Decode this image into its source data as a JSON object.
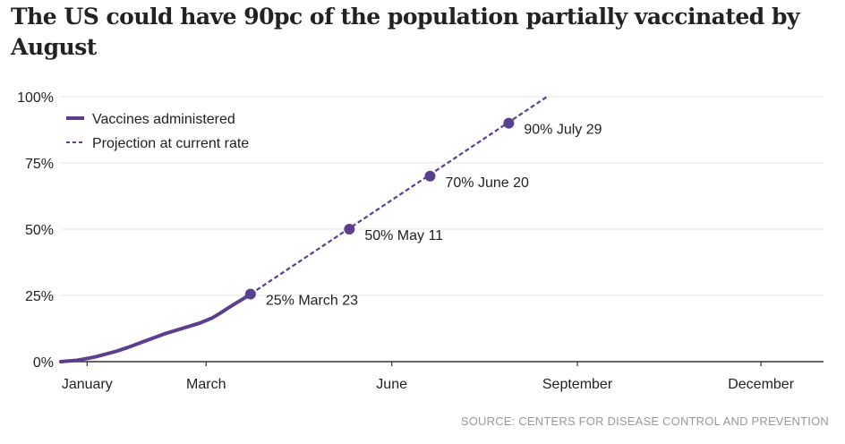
{
  "chart_data": {
    "type": "line",
    "title": "The US could have 90pc of the population partially vaccinated by August",
    "source": "SOURCE: CENTERS FOR DISEASE CONTROL AND PREVENTION",
    "x_unit": "day of 2021 (0 = Jan 1)",
    "xlim": [
      -13,
      365
    ],
    "ylim": [
      0,
      100
    ],
    "yticks": [
      0,
      25,
      50,
      75,
      100
    ],
    "ytick_labels": [
      "0%",
      "25%",
      "50%",
      "75%",
      "100%"
    ],
    "xticks": [
      0,
      59,
      151,
      243,
      334
    ],
    "xtick_labels": [
      "January",
      "March",
      "June",
      "September",
      "December"
    ],
    "grid": true,
    "legend": {
      "placement": "top-left",
      "entries": [
        "Vaccines administered",
        "Projection at current rate"
      ]
    },
    "color": "#5b3f8f",
    "series": [
      {
        "name": "Vaccines administered",
        "style": "solid",
        "x": [
          -13,
          -5,
          0,
          4,
          8,
          14,
          20,
          26,
          32,
          38,
          44,
          50,
          56,
          62,
          66,
          70,
          74,
          78,
          81
        ],
        "y": [
          0,
          0.5,
          1.2,
          1.8,
          2.6,
          3.8,
          5.3,
          7,
          8.7,
          10.4,
          11.8,
          13.2,
          14.6,
          16.5,
          18.3,
          20.3,
          22.2,
          24,
          25.5
        ]
      },
      {
        "name": "Projection at current rate",
        "style": "dashed",
        "x": [
          81,
          228
        ],
        "y": [
          25.5,
          100
        ]
      }
    ],
    "annotations": [
      {
        "x": 81,
        "y": 25,
        "label": "25% March 23"
      },
      {
        "x": 130,
        "y": 50,
        "label": "50% May 11"
      },
      {
        "x": 170,
        "y": 70,
        "label": "70% June 20"
      },
      {
        "x": 209,
        "y": 90,
        "label": "90% July 29"
      }
    ]
  }
}
